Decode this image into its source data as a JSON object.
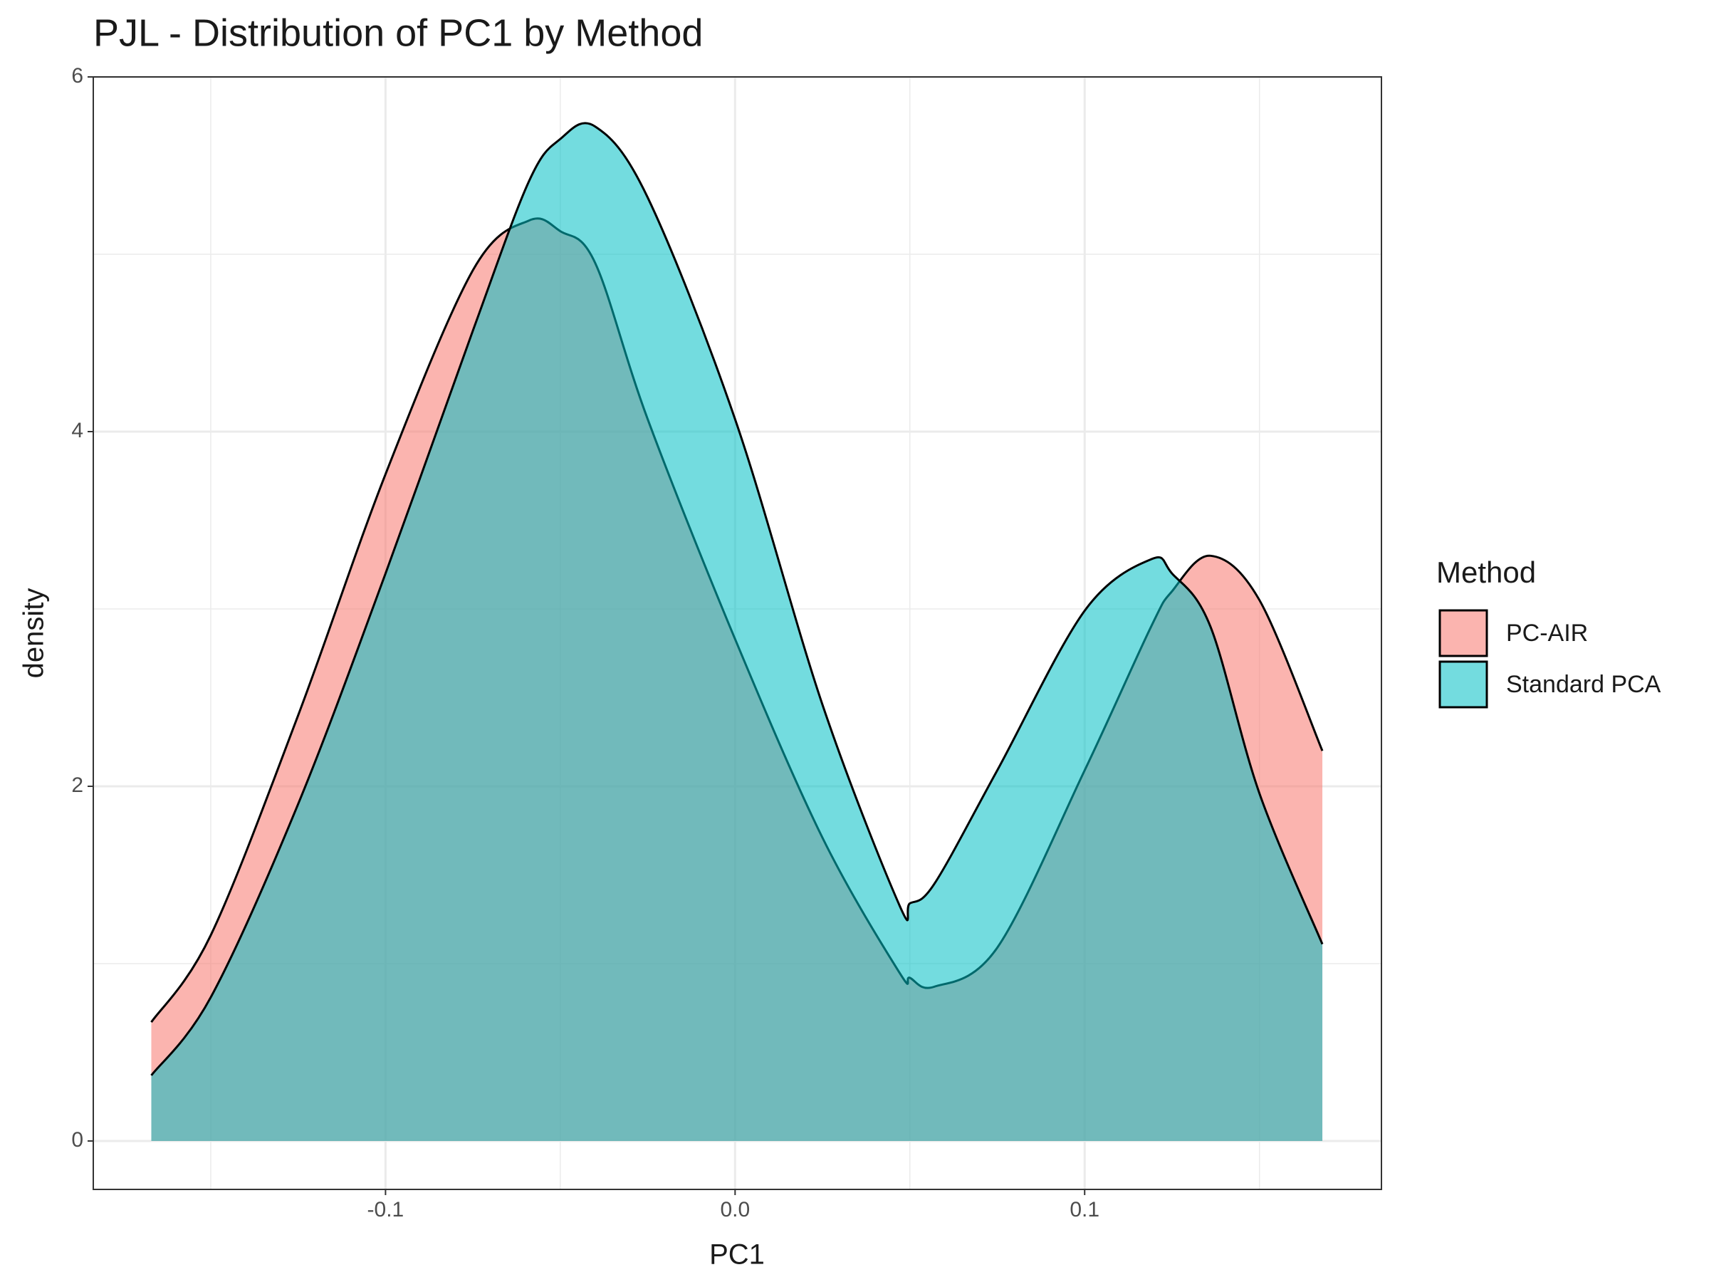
{
  "chart_data": {
    "type": "density",
    "title": "PJL - Distribution of PC1 by Method",
    "x_label": "PC1",
    "y_label": "density",
    "legend_title": "Method",
    "legend_position": "right",
    "grid": true,
    "x": [
      -0.167,
      -0.15,
      -0.125,
      -0.1,
      -0.075,
      -0.059,
      -0.05,
      -0.04,
      -0.025,
      0,
      0.025,
      0.047,
      0.05,
      0.057,
      0.075,
      0.1,
      0.119,
      0.125,
      0.136,
      0.15,
      0.168
    ],
    "series": [
      {
        "name": "PC-AIR",
        "color": "#F8766D",
        "values": [
          0.67,
          1.16,
          2.4,
          3.76,
          4.91,
          5.19,
          5.13,
          4.95,
          4.07,
          2.83,
          1.71,
          0.95,
          0.92,
          0.87,
          1.09,
          2.09,
          2.9,
          3.1,
          3.3,
          3.05,
          2.2
        ]
      },
      {
        "name": "Standard PCA",
        "color": "#00BFC4",
        "values": [
          0.37,
          0.81,
          1.9,
          3.2,
          4.57,
          5.41,
          5.65,
          5.72,
          5.32,
          4.07,
          2.46,
          1.33,
          1.34,
          1.45,
          2.09,
          2.99,
          3.28,
          3.2,
          2.9,
          1.96,
          1.11
        ]
      }
    ],
    "xlim": [
      -0.1836,
      0.1849
    ],
    "ylim": [
      -0.273,
      6.0
    ],
    "xticks": [
      -0.1,
      {
        "value": 0,
        "label": "0.0"
      },
      0.1
    ],
    "yticks": [
      0,
      2,
      4,
      6
    ]
  }
}
